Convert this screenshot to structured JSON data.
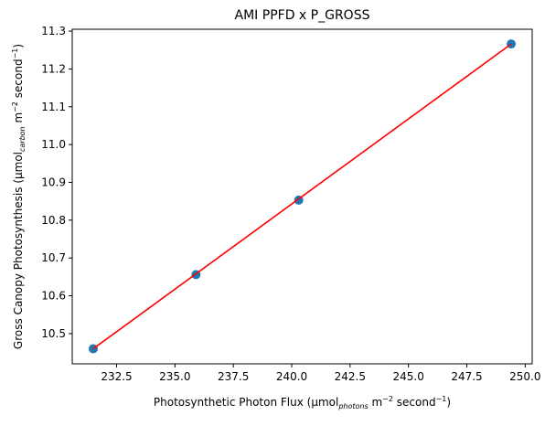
{
  "chart_data": {
    "type": "scatter",
    "title": "AMI PPFD x P_GROSS",
    "xlabel": {
      "prefix": "Photosynthetic Photon Flux (µmol",
      "sub": "photons",
      "mid": " m",
      "sup1": "−2",
      "mid2": " second",
      "sup2": "−1",
      "suffix": ")"
    },
    "ylabel": {
      "prefix": "Gross Canopy Photosynthesis (µmol",
      "sub": "carbon",
      "mid": " m",
      "sup1": "−2",
      "mid2": " second",
      "sup2": "−1",
      "suffix": ")"
    },
    "xlim": [
      230.6,
      250.3
    ],
    "ylim": [
      10.42,
      11.305
    ],
    "xticks": [
      232.5,
      235.0,
      237.5,
      240.0,
      242.5,
      245.0,
      247.5,
      250.0
    ],
    "xtick_labels": [
      "232.5",
      "235.0",
      "237.5",
      "240.0",
      "242.5",
      "245.0",
      "247.5",
      "250.0"
    ],
    "yticks": [
      10.5,
      10.6,
      10.7,
      10.8,
      10.9,
      11.0,
      11.1,
      11.2,
      11.3
    ],
    "ytick_labels": [
      "10.5",
      "10.6",
      "10.7",
      "10.8",
      "10.9",
      "11.0",
      "11.1",
      "11.2",
      "11.3"
    ],
    "points": [
      {
        "x": 231.5,
        "y": 10.46
      },
      {
        "x": 235.9,
        "y": 10.656
      },
      {
        "x": 240.3,
        "y": 10.853
      },
      {
        "x": 249.4,
        "y": 11.266
      }
    ],
    "fit_line": {
      "x": [
        231.5,
        249.4
      ],
      "y": [
        10.46,
        11.266
      ]
    },
    "colors": {
      "points": "#1f77b4",
      "line": "#ff0000"
    },
    "grid": false
  }
}
